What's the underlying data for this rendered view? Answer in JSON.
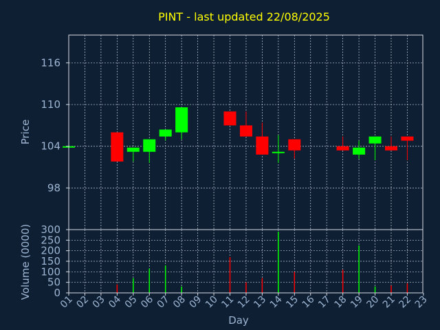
{
  "chart_data": [
    {
      "type": "candlestick",
      "title": "PINT - last updated 22/08/2025",
      "ylabel": "Price",
      "ylim": [
        92,
        120
      ],
      "yticks": [
        98,
        104,
        110,
        116
      ],
      "ytick_labels": [
        "98",
        "104",
        "110",
        "116"
      ],
      "up_color": "#00ff00",
      "down_color": "#ff0000",
      "candles": [
        {
          "day": "01",
          "open": 104.0,
          "close": 104.0,
          "high": 104.0,
          "low": 104.0
        },
        {
          "day": "04",
          "open": 106.0,
          "close": 101.8,
          "high": 106.0,
          "low": 101.8
        },
        {
          "day": "05",
          "open": 103.2,
          "close": 103.8,
          "high": 103.8,
          "low": 101.8
        },
        {
          "day": "06",
          "open": 103.2,
          "close": 105.0,
          "high": 105.0,
          "low": 101.6
        },
        {
          "day": "07",
          "open": 105.4,
          "close": 106.4,
          "high": 106.4,
          "low": 104.8
        },
        {
          "day": "08",
          "open": 106.0,
          "close": 109.6,
          "high": 109.6,
          "low": 105.0
        },
        {
          "day": "11",
          "open": 109.0,
          "close": 107.0,
          "high": 109.0,
          "low": 107.0
        },
        {
          "day": "12",
          "open": 107.0,
          "close": 105.4,
          "high": 109.0,
          "low": 105.4
        },
        {
          "day": "13",
          "open": 105.4,
          "close": 102.8,
          "high": 107.4,
          "low": 102.8
        },
        {
          "day": "14",
          "open": 103.0,
          "close": 103.2,
          "high": 105.6,
          "low": 101.6
        },
        {
          "day": "15",
          "open": 105.0,
          "close": 103.4,
          "high": 105.0,
          "low": 102.2
        },
        {
          "day": "18",
          "open": 104.0,
          "close": 103.4,
          "high": 105.4,
          "low": 103.4
        },
        {
          "day": "19",
          "open": 102.8,
          "close": 103.8,
          "high": 104.8,
          "low": 102.2
        },
        {
          "day": "20",
          "open": 104.4,
          "close": 105.4,
          "high": 105.4,
          "low": 102.0
        },
        {
          "day": "21",
          "open": 104.0,
          "close": 103.4,
          "high": 105.4,
          "low": 103.4
        },
        {
          "day": "22",
          "open": 105.4,
          "close": 104.8,
          "high": 105.4,
          "low": 102.0
        }
      ]
    },
    {
      "type": "bar",
      "ylabel": "Volume (0000)",
      "xlabel": "Day",
      "ylim": [
        0,
        300
      ],
      "yticks": [
        0,
        50,
        100,
        150,
        200,
        250,
        300
      ],
      "ytick_labels": [
        "0",
        "50",
        "100",
        "150",
        "200",
        "250",
        "300"
      ],
      "categories": [
        "01",
        "02",
        "03",
        "04",
        "05",
        "06",
        "07",
        "08",
        "09",
        "10",
        "11",
        "12",
        "13",
        "14",
        "15",
        "16",
        "17",
        "18",
        "19",
        "20",
        "21",
        "22",
        "23"
      ],
      "bars": [
        {
          "day": "04",
          "value": 40,
          "color": "#ff0000"
        },
        {
          "day": "05",
          "value": 70,
          "color": "#00ff00"
        },
        {
          "day": "06",
          "value": 115,
          "color": "#00ff00"
        },
        {
          "day": "07",
          "value": 130,
          "color": "#00ff00"
        },
        {
          "day": "08",
          "value": 30,
          "color": "#00ff00"
        },
        {
          "day": "11",
          "value": 170,
          "color": "#ff0000"
        },
        {
          "day": "12",
          "value": 50,
          "color": "#ff0000"
        },
        {
          "day": "13",
          "value": 70,
          "color": "#ff0000"
        },
        {
          "day": "14",
          "value": 290,
          "color": "#00ff00"
        },
        {
          "day": "15",
          "value": 100,
          "color": "#ff0000"
        },
        {
          "day": "18",
          "value": 110,
          "color": "#ff0000"
        },
        {
          "day": "19",
          "value": 225,
          "color": "#00ff00"
        },
        {
          "day": "20",
          "value": 30,
          "color": "#00ff00"
        },
        {
          "day": "21",
          "value": 35,
          "color": "#ff0000"
        },
        {
          "day": "22",
          "value": 45,
          "color": "#ff0000"
        }
      ]
    }
  ]
}
